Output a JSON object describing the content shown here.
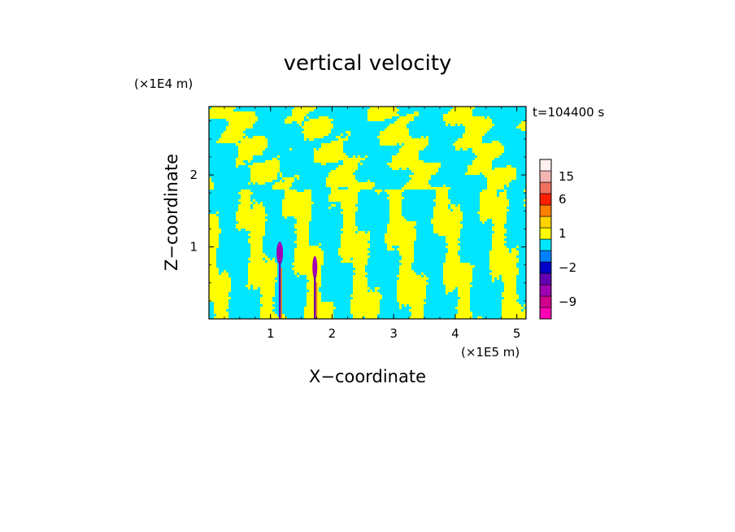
{
  "chart_data": {
    "type": "heatmap",
    "title": "vertical velocity",
    "xlabel": "X−coordinate",
    "ylabel": "Z−coordinate",
    "x_unit": "(×1E5 m)",
    "y_unit": "(×1E4 m)",
    "time_label": "t=104400 s",
    "xlim": [
      0,
      5.15
    ],
    "ylim": [
      0,
      2.95
    ],
    "xticks": [
      1,
      2,
      3,
      4,
      5
    ],
    "xtick_labels": [
      "1",
      "2",
      "3",
      "4",
      "5"
    ],
    "yticks": [
      1,
      2
    ],
    "ytick_labels": [
      "1",
      "2"
    ],
    "grid": false,
    "colorbar": {
      "position": "right",
      "levels": [
        -12,
        -9,
        -6,
        -4,
        -2,
        -1,
        0,
        1,
        2,
        4,
        6,
        10,
        15,
        20
      ],
      "colors": [
        "#ff00b4",
        "#d0008c",
        "#a000b4",
        "#6400b4",
        "#0000c8",
        "#0080ff",
        "#00e6ff",
        "#ffff00",
        "#ffd400",
        "#ff7f00",
        "#ff1e00",
        "#f07060",
        "#f5b4b4",
        "#fff0f0"
      ],
      "tick_values": [
        15,
        6,
        1,
        -2,
        -9
      ],
      "tick_labels": [
        "15",
        "6",
        "1",
        "−2",
        "−9"
      ]
    },
    "colors": {
      "background": "#00e6ff",
      "positive": "#ffff00",
      "negative_strong": "#a000b4"
    }
  }
}
